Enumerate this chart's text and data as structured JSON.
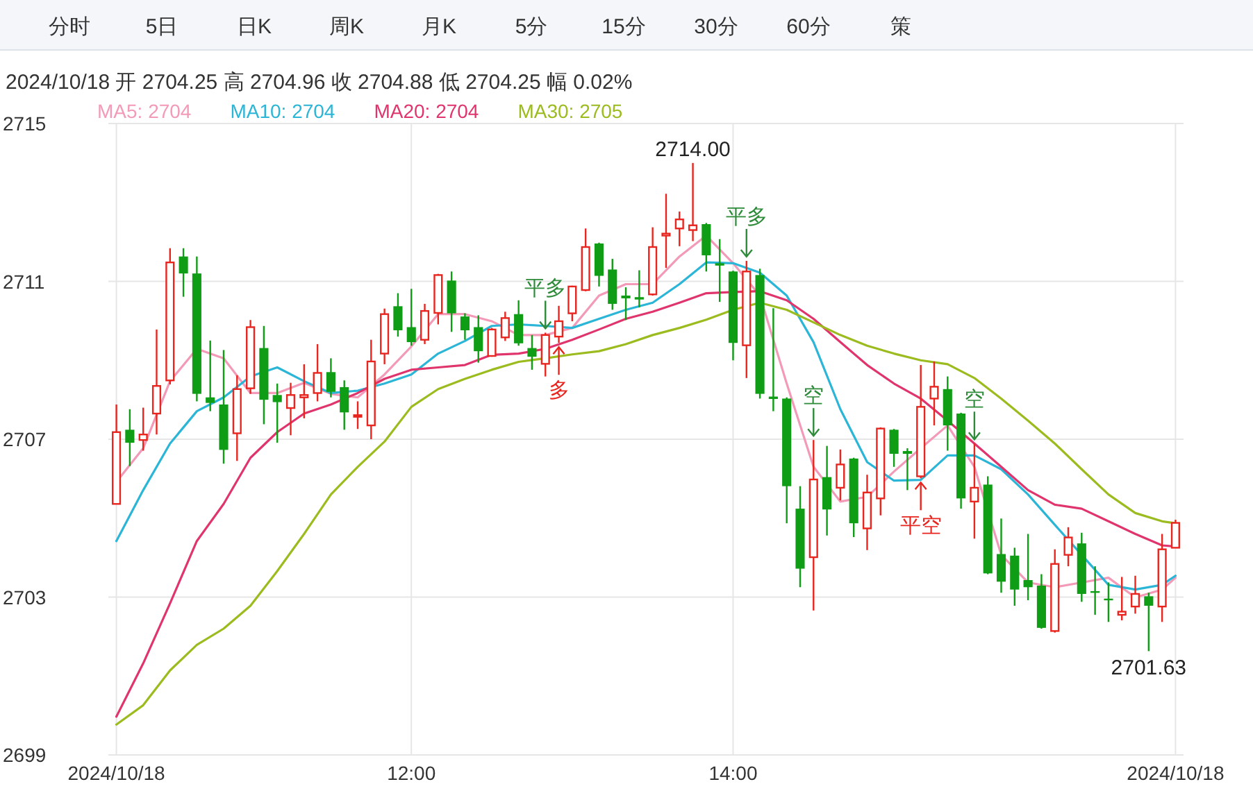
{
  "chart_data": {
    "type": "candlestick",
    "subtitle": "2024/10/18 开 2704.25 高 2704.96 收 2704.88 低 2704.25 幅 0.02%",
    "annotations": [
      "分时",
      "5日",
      "日K",
      "周K",
      "月K",
      "5分",
      "15分",
      "30分",
      "60分",
      "策",
      {
        "text": "平多",
        "x": "2024-10-18T12:50",
        "y": 2709.7
      },
      {
        "text": "多",
        "x": "2024-10-18T12:55",
        "y": 2709.44
      },
      {
        "text": "2714.00",
        "x": "2024-10-18T13:45",
        "y": 2714.0
      },
      {
        "text": "平多",
        "x": "2024-10-18T14:05",
        "y": 2711.52
      },
      {
        "text": "空",
        "x": "2024-10-18T14:30",
        "y": 2706.98
      },
      {
        "text": "平空",
        "x": "2024-10-18T15:10",
        "y": 2706.01
      },
      {
        "text": "空",
        "x": "2024-10-18T15:30",
        "y": 2706.89
      },
      {
        "text": "2701.63",
        "x": "2024-10-18T16:35",
        "y": 2701.63
      }
    ],
    "x": [
      "2024-10-18T10:10",
      "2024-10-18T10:15",
      "2024-10-18T10:20",
      "2024-10-18T10:25",
      "2024-10-18T10:30",
      "2024-10-18T10:35",
      "2024-10-18T10:40",
      "2024-10-18T10:45",
      "2024-10-18T10:50",
      "2024-10-18T10:55",
      "2024-10-18T11:00",
      "2024-10-18T11:05",
      "2024-10-18T11:10",
      "2024-10-18T11:15",
      "2024-10-18T11:20",
      "2024-10-18T11:25",
      "2024-10-18T11:30",
      "2024-10-18T11:35",
      "2024-10-18T11:40",
      "2024-10-18T11:45",
      "2024-10-18T11:50",
      "2024-10-18T11:55",
      "2024-10-18T12:00",
      "2024-10-18T12:05",
      "2024-10-18T12:10",
      "2024-10-18T12:15",
      "2024-10-18T12:20",
      "2024-10-18T12:25",
      "2024-10-18T12:30",
      "2024-10-18T12:35",
      "2024-10-18T12:40",
      "2024-10-18T12:45",
      "2024-10-18T12:50",
      "2024-10-18T12:55",
      "2024-10-18T13:00",
      "2024-10-18T13:05",
      "2024-10-18T13:10",
      "2024-10-18T13:15",
      "2024-10-18T13:20",
      "2024-10-18T13:25",
      "2024-10-18T13:30",
      "2024-10-18T13:35",
      "2024-10-18T13:40",
      "2024-10-18T13:45",
      "2024-10-18T13:50",
      "2024-10-18T13:55",
      "2024-10-18T14:00",
      "2024-10-18T14:05",
      "2024-10-18T14:10",
      "2024-10-18T14:15",
      "2024-10-18T14:20",
      "2024-10-18T14:25",
      "2024-10-18T14:30",
      "2024-10-18T14:35",
      "2024-10-18T14:40",
      "2024-10-18T14:45",
      "2024-10-18T14:50",
      "2024-10-18T14:55",
      "2024-10-18T15:00",
      "2024-10-18T15:05",
      "2024-10-18T15:10",
      "2024-10-18T15:15",
      "2024-10-18T15:20",
      "2024-10-18T15:25",
      "2024-10-18T15:30",
      "2024-10-18T15:35",
      "2024-10-18T15:40",
      "2024-10-18T15:45",
      "2024-10-18T15:50",
      "2024-10-18T15:55",
      "2024-10-18T16:00",
      "2024-10-18T16:05",
      "2024-10-18T16:10",
      "2024-10-18T16:15",
      "2024-10-18T16:20",
      "2024-10-18T16:25",
      "2024-10-18T16:30",
      "2024-10-18T16:35",
      "2024-10-18T16:40",
      "2024-10-18T16:45"
    ],
    "ohlc": [
      [
        2705.36,
        2707.88,
        2705.36,
        2707.18
      ],
      [
        2707.24,
        2707.76,
        2706.32,
        2706.91
      ],
      [
        2706.98,
        2707.8,
        2706.71,
        2707.12
      ],
      [
        2707.65,
        2709.78,
        2707.12,
        2708.35
      ],
      [
        2708.49,
        2711.84,
        2708.39,
        2711.48
      ],
      [
        2711.63,
        2711.84,
        2710.61,
        2711.2
      ],
      [
        2711.2,
        2711.63,
        2707.96,
        2708.15
      ],
      [
        2708.06,
        2709.5,
        2707.71,
        2707.92
      ],
      [
        2707.88,
        2709.26,
        2706.38,
        2706.73
      ],
      [
        2707.15,
        2708.62,
        2706.45,
        2708.27
      ],
      [
        2708.29,
        2710.02,
        2708.15,
        2709.84
      ],
      [
        2709.31,
        2709.87,
        2707.38,
        2708.0
      ],
      [
        2708.12,
        2708.41,
        2706.91,
        2707.94
      ],
      [
        2707.79,
        2708.43,
        2707.1,
        2708.12
      ],
      [
        2708.06,
        2708.9,
        2707.53,
        2708.12
      ],
      [
        2708.17,
        2709.41,
        2707.96,
        2708.68
      ],
      [
        2708.7,
        2709.05,
        2708.06,
        2708.2
      ],
      [
        2708.32,
        2708.49,
        2707.24,
        2707.68
      ],
      [
        2707.57,
        2707.96,
        2707.26,
        2707.61
      ],
      [
        2707.35,
        2709.52,
        2707.0,
        2708.97
      ],
      [
        2709.17,
        2710.31,
        2708.9,
        2710.17
      ],
      [
        2710.37,
        2710.7,
        2709.6,
        2709.76
      ],
      [
        2709.84,
        2710.81,
        2709.37,
        2709.46
      ],
      [
        2709.52,
        2710.43,
        2709.41,
        2710.25
      ],
      [
        2710.2,
        2711.19,
        2709.91,
        2711.16
      ],
      [
        2711.02,
        2711.25,
        2709.72,
        2710.19
      ],
      [
        2710.11,
        2710.19,
        2709.52,
        2709.76
      ],
      [
        2709.84,
        2710.14,
        2708.94,
        2709.23
      ],
      [
        2709.11,
        2709.82,
        2709.09,
        2709.78
      ],
      [
        2709.58,
        2710.23,
        2709.49,
        2710.07
      ],
      [
        2710.17,
        2710.52,
        2709.37,
        2709.43
      ],
      [
        2709.31,
        2709.64,
        2708.76,
        2709.09
      ],
      [
        2708.91,
        2709.7,
        2708.59,
        2709.64
      ],
      [
        2709.6,
        2710.38,
        2709.44,
        2709.99
      ],
      [
        2710.19,
        2710.89,
        2709.99,
        2710.87
      ],
      [
        2710.78,
        2712.34,
        2710.75,
        2711.87
      ],
      [
        2711.96,
        2711.98,
        2710.87,
        2711.14
      ],
      [
        2711.3,
        2711.57,
        2710.28,
        2710.43
      ],
      [
        2710.64,
        2710.85,
        2710.02,
        2710.57
      ],
      [
        2710.6,
        2711.28,
        2710.34,
        2710.54
      ],
      [
        2710.67,
        2712.37,
        2710.64,
        2711.87
      ],
      [
        2712.16,
        2713.22,
        2711.34,
        2712.21
      ],
      [
        2712.34,
        2712.77,
        2711.89,
        2712.57
      ],
      [
        2712.3,
        2714.0,
        2712.02,
        2712.42
      ],
      [
        2712.45,
        2712.48,
        2711.25,
        2711.66
      ],
      [
        2711.46,
        2712.07,
        2710.48,
        2711.4
      ],
      [
        2711.25,
        2711.27,
        2709.0,
        2709.44
      ],
      [
        2709.38,
        2711.52,
        2708.55,
        2711.25
      ],
      [
        2711.16,
        2711.32,
        2708.03,
        2708.15
      ],
      [
        2708.08,
        2710.32,
        2707.71,
        2708.02
      ],
      [
        2708.03,
        2708.06,
        2704.87,
        2705.81
      ],
      [
        2705.24,
        2705.81,
        2703.25,
        2703.72
      ],
      [
        2704.01,
        2706.98,
        2702.66,
        2705.98
      ],
      [
        2706.04,
        2706.83,
        2704.56,
        2705.22
      ],
      [
        2705.77,
        2706.74,
        2705.45,
        2706.36
      ],
      [
        2706.51,
        2706.53,
        2704.52,
        2704.87
      ],
      [
        2704.74,
        2706.1,
        2704.19,
        2705.65
      ],
      [
        2705.5,
        2707.3,
        2705.07,
        2707.27
      ],
      [
        2707.24,
        2707.26,
        2706.3,
        2706.63
      ],
      [
        2706.7,
        2706.77,
        2705.71,
        2706.63
      ],
      [
        2706.06,
        2708.88,
        2706.01,
        2707.82
      ],
      [
        2708.03,
        2708.97,
        2707.35,
        2708.33
      ],
      [
        2708.27,
        2708.59,
        2706.71,
        2707.35
      ],
      [
        2707.65,
        2707.67,
        2705.24,
        2705.5
      ],
      [
        2705.42,
        2706.89,
        2704.48,
        2705.77
      ],
      [
        2705.85,
        2706.06,
        2703.58,
        2703.6
      ],
      [
        2704.09,
        2704.99,
        2703.11,
        2703.39
      ],
      [
        2704.05,
        2704.25,
        2702.78,
        2703.19
      ],
      [
        2703.43,
        2704.6,
        2702.92,
        2703.25
      ],
      [
        2703.29,
        2703.58,
        2702.2,
        2702.22
      ],
      [
        2702.14,
        2704.21,
        2702.1,
        2703.84
      ],
      [
        2704.07,
        2704.77,
        2703.78,
        2704.51
      ],
      [
        2704.36,
        2704.63,
        2702.88,
        2703.08
      ],
      [
        2703.15,
        2703.78,
        2702.55,
        2703.11
      ],
      [
        2702.96,
        2703.37,
        2702.37,
        2702.92
      ],
      [
        2702.55,
        2703.51,
        2702.41,
        2702.63
      ],
      [
        2702.76,
        2703.54,
        2702.58,
        2703.08
      ],
      [
        2703.02,
        2703.11,
        2701.63,
        2702.78
      ],
      [
        2702.76,
        2704.6,
        2702.37,
        2704.21
      ],
      [
        2704.25,
        2704.96,
        2704.25,
        2704.88
      ]
    ],
    "colors": [
      "#e8251f",
      "#0f9d15",
      "#e8251f",
      "#e8251f",
      "#e8251f",
      "#0f9d15",
      "#0f9d15",
      "#0f9d15",
      "#0f9d15",
      "#e8251f",
      "#e8251f",
      "#0f9d15",
      "#0f9d15",
      "#e8251f",
      "#e8251f",
      "#e8251f",
      "#0f9d15",
      "#0f9d15",
      "#e8251f",
      "#e8251f",
      "#e8251f",
      "#0f9d15",
      "#0f9d15",
      "#e8251f",
      "#e8251f",
      "#0f9d15",
      "#0f9d15",
      "#0f9d15",
      "#e8251f",
      "#e8251f",
      "#0f9d15",
      "#0f9d15",
      "#e8251f",
      "#e8251f",
      "#e8251f",
      "#e8251f",
      "#0f9d15",
      "#0f9d15",
      "#0f9d15",
      "#0f9d15",
      "#e8251f",
      "#e8251f",
      "#e8251f",
      "#e8251f",
      "#0f9d15",
      "#0f9d15",
      "#0f9d15",
      "#e8251f",
      "#0f9d15",
      "#0f9d15",
      "#0f9d15",
      "#0f9d15",
      "#e8251f",
      "#0f9d15",
      "#e8251f",
      "#0f9d15",
      "#e8251f",
      "#e8251f",
      "#0f9d15",
      "#0f9d15",
      "#e8251f",
      "#e8251f",
      "#0f9d15",
      "#0f9d15",
      "#e8251f",
      "#0f9d15",
      "#0f9d15",
      "#0f9d15",
      "#0f9d15",
      "#0f9d15",
      "#e8251f",
      "#e8251f",
      "#0f9d15",
      "#0f9d15",
      "#0f9d15",
      "#e8251f",
      "#e8251f",
      "#0f9d15",
      "#e8251f",
      "#e8251f"
    ],
    "series": [
      {
        "name": "MA5: 2704",
        "type": "line",
        "color": "#f29ab8",
        "x": [
          "2024-10-18T10:10",
          "2024-10-18T10:20",
          "2024-10-18T10:30",
          "2024-10-18T10:40",
          "2024-10-18T10:50",
          "2024-10-18T11:00",
          "2024-10-18T11:10",
          "2024-10-18T11:20",
          "2024-10-18T11:30",
          "2024-10-18T11:40",
          "2024-10-18T11:50",
          "2024-10-18T12:00",
          "2024-10-18T12:10",
          "2024-10-18T12:20",
          "2024-10-18T12:30",
          "2024-10-18T12:40",
          "2024-10-18T12:50",
          "2024-10-18T13:00",
          "2024-10-18T13:10",
          "2024-10-18T13:20",
          "2024-10-18T13:30",
          "2024-10-18T13:40",
          "2024-10-18T13:50",
          "2024-10-18T14:00",
          "2024-10-18T14:10",
          "2024-10-18T14:20",
          "2024-10-18T14:30",
          "2024-10-18T14:40",
          "2024-10-18T14:50",
          "2024-10-18T15:00",
          "2024-10-18T15:10",
          "2024-10-18T15:20",
          "2024-10-18T15:30",
          "2024-10-18T15:40",
          "2024-10-18T15:50",
          "2024-10-18T16:00",
          "2024-10-18T16:10",
          "2024-10-18T16:20",
          "2024-10-18T16:30",
          "2024-10-18T16:40",
          "2024-10-18T16:45"
        ],
        "values": [
          2705.92,
          2706.77,
          2708.47,
          2709.29,
          2709.05,
          2708.17,
          2708.17,
          2708.43,
          2708.15,
          2708.06,
          2708.64,
          2709.35,
          2710.17,
          2710.17,
          2709.99,
          2709.64,
          2709.64,
          2709.82,
          2710.64,
          2710.93,
          2710.93,
          2711.63,
          2712.16,
          2711.46,
          2710.64,
          2708.41,
          2706.3,
          2705.42,
          2705.54,
          2706.18,
          2706.77,
          2707.35,
          2706.3,
          2704.07,
          2703.37,
          2703.25,
          2703.37,
          2703.49,
          2702.99,
          2703.19,
          2703.49
        ]
      },
      {
        "name": "MA10: 2704",
        "type": "line",
        "color": "#2bb5d6",
        "x": [
          "2024-10-18T10:10",
          "2024-10-18T10:20",
          "2024-10-18T10:30",
          "2024-10-18T10:40",
          "2024-10-18T10:50",
          "2024-10-18T11:00",
          "2024-10-18T11:10",
          "2024-10-18T11:20",
          "2024-10-18T11:30",
          "2024-10-18T11:40",
          "2024-10-18T11:50",
          "2024-10-18T12:00",
          "2024-10-18T12:10",
          "2024-10-18T12:20",
          "2024-10-18T12:30",
          "2024-10-18T12:40",
          "2024-10-18T12:50",
          "2024-10-18T13:00",
          "2024-10-18T13:10",
          "2024-10-18T13:20",
          "2024-10-18T13:30",
          "2024-10-18T13:40",
          "2024-10-18T13:50",
          "2024-10-18T14:00",
          "2024-10-18T14:10",
          "2024-10-18T14:20",
          "2024-10-18T14:30",
          "2024-10-18T14:40",
          "2024-10-18T14:50",
          "2024-10-18T15:00",
          "2024-10-18T15:10",
          "2024-10-18T15:20",
          "2024-10-18T15:30",
          "2024-10-18T15:40",
          "2024-10-18T15:50",
          "2024-10-18T16:00",
          "2024-10-18T16:10",
          "2024-10-18T16:20",
          "2024-10-18T16:30",
          "2024-10-18T16:40",
          "2024-10-18T16:45"
        ],
        "values": [
          2704.42,
          2705.71,
          2706.89,
          2707.71,
          2708.06,
          2708.59,
          2708.82,
          2708.47,
          2708.17,
          2708.23,
          2708.41,
          2708.64,
          2709.17,
          2709.49,
          2709.87,
          2709.91,
          2709.87,
          2709.82,
          2710.05,
          2710.28,
          2710.46,
          2710.93,
          2711.48,
          2711.46,
          2711.22,
          2710.64,
          2709.46,
          2707.76,
          2706.42,
          2705.95,
          2705.97,
          2706.59,
          2706.59,
          2706.24,
          2705.6,
          2704.83,
          2704.07,
          2703.31,
          2703.19,
          2703.31,
          2703.54
        ]
      },
      {
        "name": "MA20: 2704",
        "type": "line",
        "color": "#e0356c",
        "x": [
          "2024-10-18T10:10",
          "2024-10-18T10:20",
          "2024-10-18T10:30",
          "2024-10-18T10:40",
          "2024-10-18T10:50",
          "2024-10-18T11:00",
          "2024-10-18T11:10",
          "2024-10-18T11:20",
          "2024-10-18T11:30",
          "2024-10-18T11:40",
          "2024-10-18T11:50",
          "2024-10-18T12:00",
          "2024-10-18T12:10",
          "2024-10-18T12:20",
          "2024-10-18T12:30",
          "2024-10-18T12:40",
          "2024-10-18T12:50",
          "2024-10-18T13:00",
          "2024-10-18T13:10",
          "2024-10-18T13:20",
          "2024-10-18T13:30",
          "2024-10-18T13:40",
          "2024-10-18T13:50",
          "2024-10-18T14:00",
          "2024-10-18T14:10",
          "2024-10-18T14:20",
          "2024-10-18T14:30",
          "2024-10-18T14:40",
          "2024-10-18T14:50",
          "2024-10-18T15:00",
          "2024-10-18T15:10",
          "2024-10-18T15:20",
          "2024-10-18T15:30",
          "2024-10-18T15:40",
          "2024-10-18T15:50",
          "2024-10-18T16:00",
          "2024-10-18T16:10",
          "2024-10-18T16:20",
          "2024-10-18T16:30",
          "2024-10-18T16:40",
          "2024-10-18T16:45"
        ],
        "values": [
          2699.97,
          2701.32,
          2702.84,
          2704.42,
          2705.36,
          2706.53,
          2707.18,
          2707.65,
          2707.88,
          2708.17,
          2708.53,
          2708.76,
          2708.82,
          2708.88,
          2709.14,
          2709.17,
          2709.29,
          2709.52,
          2709.78,
          2710.05,
          2710.23,
          2710.46,
          2710.7,
          2710.73,
          2710.75,
          2710.52,
          2710.05,
          2709.46,
          2708.88,
          2708.41,
          2708.03,
          2707.47,
          2706.89,
          2706.3,
          2705.71,
          2705.34,
          2705.24,
          2704.92,
          2704.6,
          2704.31,
          2704.28
        ]
      },
      {
        "name": "MA30: 2705",
        "type": "line",
        "color": "#9bbb1e",
        "x": [
          "2024-10-18T10:10",
          "2024-10-18T10:20",
          "2024-10-18T10:30",
          "2024-10-18T10:40",
          "2024-10-18T10:50",
          "2024-10-18T11:00",
          "2024-10-18T11:10",
          "2024-10-18T11:20",
          "2024-10-18T11:30",
          "2024-10-18T11:40",
          "2024-10-18T11:50",
          "2024-10-18T12:00",
          "2024-10-18T12:10",
          "2024-10-18T12:20",
          "2024-10-18T12:30",
          "2024-10-18T12:40",
          "2024-10-18T12:50",
          "2024-10-18T13:00",
          "2024-10-18T13:10",
          "2024-10-18T13:20",
          "2024-10-18T13:30",
          "2024-10-18T13:40",
          "2024-10-18T13:50",
          "2024-10-18T14:00",
          "2024-10-18T14:10",
          "2024-10-18T14:20",
          "2024-10-18T14:30",
          "2024-10-18T14:40",
          "2024-10-18T14:50",
          "2024-10-18T15:00",
          "2024-10-18T15:10",
          "2024-10-18T15:20",
          "2024-10-18T15:30",
          "2024-10-18T15:40",
          "2024-10-18T15:50",
          "2024-10-18T16:00",
          "2024-10-18T16:10",
          "2024-10-18T16:20",
          "2024-10-18T16:30",
          "2024-10-18T16:40",
          "2024-10-18T16:45"
        ],
        "values": [
          2699.77,
          2700.26,
          2701.14,
          2701.79,
          2702.2,
          2702.78,
          2703.66,
          2704.6,
          2705.6,
          2706.3,
          2706.94,
          2707.82,
          2708.27,
          2708.53,
          2708.76,
          2708.96,
          2709.05,
          2709.15,
          2709.23,
          2709.41,
          2709.64,
          2709.82,
          2710.03,
          2710.28,
          2710.46,
          2710.28,
          2709.96,
          2709.64,
          2709.37,
          2709.17,
          2709.0,
          2708.9,
          2708.55,
          2708.03,
          2707.47,
          2706.89,
          2706.24,
          2705.6,
          2705.13,
          2704.92,
          2704.87
        ]
      }
    ],
    "xlim": [
      "2024-10-18T10:07",
      "2024-10-18T16:48"
    ],
    "xticks": [
      {
        "value": "2024-10-18T10:10",
        "label": "2024/10/18"
      },
      {
        "value": "2024-10-18T12:00",
        "label": "12:00"
      },
      {
        "value": "2024-10-18T14:00",
        "label": "14:00"
      },
      {
        "value": "2024-10-18T16:45",
        "label": "2024/10/18"
      }
    ],
    "ylim": [
      2699,
      2715
    ],
    "yticks": [
      2699,
      2703,
      2707,
      2711,
      2715
    ],
    "grid": true,
    "legend": "top"
  }
}
